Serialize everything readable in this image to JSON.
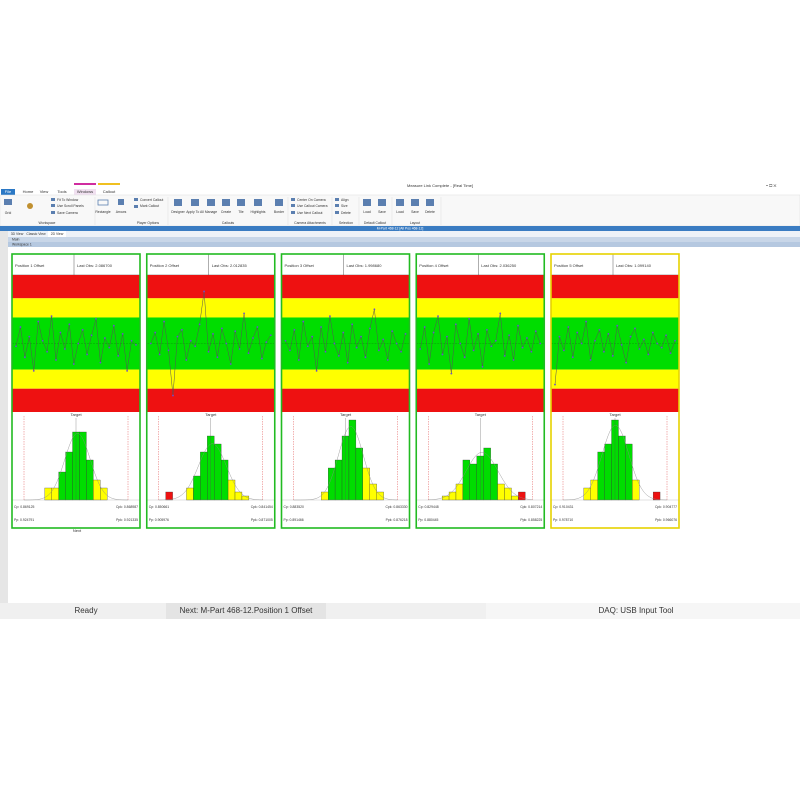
{
  "window": {
    "title": "Measure Link Complete - [Real Time]"
  },
  "tabs": [
    "File",
    "Home",
    "View",
    "Tools",
    "Windows",
    "Callout"
  ],
  "ribbon": {
    "buttons": [
      "Grid",
      "Fit To Window",
      "Use Scroll Panels",
      "Save Camera",
      "Rectangle",
      "Arrows",
      "Convert Callout",
      "Mark Callout",
      "Designer",
      "Apply To All",
      "Manage",
      "Create",
      "Tile",
      "Highlights",
      "Border",
      "Center On Camera",
      "Use Callout Camera",
      "Use Next Callout",
      "Align",
      "Size",
      "Delete",
      "Load",
      "Save",
      "Load",
      "Save",
      "Delete"
    ],
    "groups": [
      "Workspace",
      "Player Options",
      "Callouts",
      "Camera Attachments",
      "Selection",
      "Default Callout",
      "Layout"
    ]
  },
  "document_bar": "M-Part 468-12 [All Pos 468-12]",
  "doc_tabs": [
    "3D View",
    "Classic View",
    "2D View"
  ],
  "tree": [
    "Main",
    "Workspace 1"
  ],
  "target_label": "Target",
  "zone_colors": {
    "r": "#ee1111",
    "y": "#ffff00",
    "g": "#00dd00"
  },
  "hist_zones": [
    "r",
    "r",
    "y",
    "y",
    "y",
    "g",
    "g",
    "g",
    "g",
    "g",
    "y",
    "y",
    "y",
    "r",
    "r"
  ],
  "panels": [
    {
      "name": "Position 1 Offset",
      "last_obs": "Last Obs: 2.086700",
      "border": "#22bb22",
      "stats": [
        "Cp: 0.869125",
        "Cpk: 0.868987",
        "Pp: 0.924791",
        "Ppk: 0.921335"
      ],
      "points": [
        48,
        62,
        40,
        55,
        30,
        66,
        52,
        44,
        70,
        38,
        58,
        46,
        64,
        35,
        50,
        60,
        42,
        56,
        68,
        36,
        54,
        47,
        63,
        41,
        57,
        30,
        52,
        49
      ],
      "hist": [
        0,
        0,
        0,
        3,
        3,
        7,
        12,
        17,
        17,
        10,
        5,
        3,
        0,
        0,
        0
      ]
    },
    {
      "name": "Position 2 Offset",
      "last_obs": "Last Obs: 2.012835",
      "border": "#22bb22",
      "stats": [
        "Cp: 0.850661",
        "Cpk: 0.841454",
        "Pp: 0.905976",
        "Ppk: 0.871005"
      ],
      "points": [
        50,
        58,
        42,
        66,
        45,
        12,
        55,
        60,
        38,
        52,
        48,
        64,
        88,
        44,
        57,
        40,
        61,
        50,
        35,
        59,
        46,
        72,
        43,
        54,
        62,
        39,
        51,
        56
      ],
      "hist": [
        0,
        2,
        0,
        0,
        3,
        6,
        12,
        16,
        14,
        10,
        5,
        2,
        1,
        0,
        0
      ]
    },
    {
      "name": "Position 3 Offset",
      "last_obs": "Last Obs: 1.998680",
      "border": "#22bb22",
      "stats": [
        "Cp: 0.883520",
        "Cpk: 0.863330",
        "Pp: 0.891466",
        "Ppk: 0.876218"
      ],
      "points": [
        52,
        45,
        60,
        38,
        66,
        48,
        55,
        30,
        62,
        44,
        70,
        50,
        41,
        58,
        36,
        64,
        47,
        55,
        40,
        61,
        75,
        45,
        53,
        38,
        59,
        50,
        44,
        57
      ],
      "hist": [
        0,
        0,
        0,
        0,
        2,
        8,
        10,
        16,
        20,
        13,
        8,
        4,
        2,
        0,
        0
      ]
    },
    {
      "name": "Position 4 Offset",
      "last_obs": "Last Obs: 2.036250",
      "border": "#22bb22",
      "stats": [
        "Cp: 0.829448",
        "Cpk: 0.807214",
        "Pp: 0.880445",
        "Ppk: 0.858225"
      ],
      "points": [
        46,
        62,
        35,
        58,
        70,
        42,
        55,
        28,
        64,
        50,
        40,
        68,
        45,
        57,
        33,
        60,
        48,
        52,
        72,
        41,
        56,
        38,
        63,
        47,
        54,
        44,
        59,
        50
      ],
      "hist": [
        0,
        0,
        1,
        2,
        4,
        10,
        9,
        11,
        13,
        9,
        4,
        3,
        1,
        2,
        0
      ]
    },
    {
      "name": "Position 5 Offset",
      "last_obs": "Last Obs: 1.099140",
      "border": "#e6d200",
      "stats": [
        "Cp: 0.910431",
        "Cpk: 0.904777",
        "Pp: 0.978710",
        "Ppk: 0.966076"
      ],
      "points": [
        20,
        55,
        45,
        62,
        40,
        58,
        50,
        66,
        38,
        52,
        60,
        44,
        57,
        41,
        63,
        49,
        36,
        55,
        61,
        46,
        53,
        42,
        58,
        50,
        47,
        56,
        43,
        52
      ],
      "hist": [
        0,
        0,
        0,
        3,
        5,
        12,
        14,
        20,
        16,
        14,
        5,
        0,
        0,
        2,
        0
      ]
    }
  ],
  "next_label": "Next",
  "status": {
    "left": "Ready",
    "middle": "Next: M-Part 468-12.Position 1 Offset",
    "right": "DAQ: USB Input Tool"
  }
}
